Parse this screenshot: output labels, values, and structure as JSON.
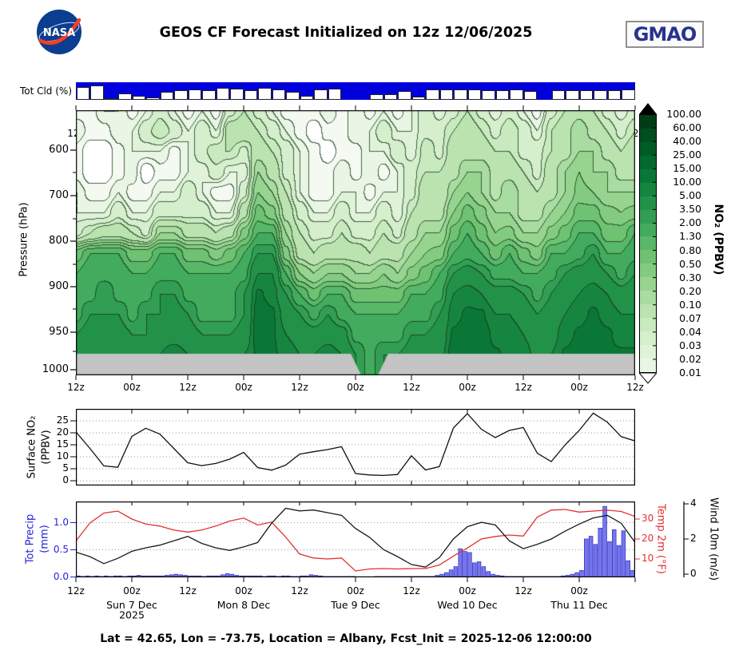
{
  "header": {
    "title": "GEOS CF Forecast Initialized on 12z 12/06/2025",
    "nasa_text": "NASA",
    "gmao_text": "GMAO"
  },
  "footer": {
    "text": "Lat = 42.65, Lon = -73.75, Location = Albany, Fcst_Init = 2025-12-06 12:00:00"
  },
  "colors": {
    "cloud_blue": "#0000dd",
    "precip_bar": "#7575ee",
    "precip_edge": "#2222bb",
    "temp_red": "#e33030",
    "wind_black": "#1a1a1a",
    "terrain_gray": "#c4c4c4",
    "grid_dot": "#999999",
    "frame": "#000000",
    "nasa_blue": "#0b3d91",
    "nasa_red": "#fc3d21"
  },
  "labels": {
    "cloud": "Tot Cld (%)",
    "pressure": "Pressure (hPa)",
    "colorbar_title": "NO₂ (PPBV)",
    "surface_line1": "Surface NO₂",
    "surface_line2": "(PPBV)",
    "precip_line1": "Tot Precip",
    "precip_line2": "(mm)",
    "temp": "Temp 2m (°F)",
    "wind": "Wind 10m (m/s)"
  },
  "time_axis": {
    "tick_labels_11": [
      "12z",
      "00z",
      "12z",
      "00z",
      "12z",
      "00z",
      "12z",
      "00z",
      "12z",
      "00z",
      "12z"
    ],
    "tick_labels_10": [
      "12z",
      "00z",
      "12z",
      "00z",
      "12z",
      "00z",
      "12z",
      "00z",
      "12z",
      "00z"
    ],
    "day_labels": [
      "Sun 7 Dec",
      "Mon 8 Dec",
      "Tue 9 Dec",
      "Wed 10 Dec",
      "Thu 11 Dec"
    ],
    "year": "2025"
  },
  "axes": {
    "pressure_ticks": [
      "600",
      "700",
      "800",
      "900",
      "950",
      "1000"
    ],
    "surface_ticks": [
      "0",
      "5",
      "10",
      "15",
      "20",
      "25"
    ],
    "precip_ticks": [
      "0.0",
      "0.5",
      "1.0"
    ],
    "temp_ticks": [
      "10",
      "20",
      "30"
    ],
    "wind_ticks": [
      "0",
      "2",
      "4"
    ],
    "colorbar_labels": [
      "100.00",
      "60.00",
      "40.00",
      "25.00",
      "15.00",
      "10.00",
      "5.00",
      "3.50",
      "2.00",
      "1.30",
      "0.80",
      "0.50",
      "0.30",
      "0.20",
      "0.10",
      "0.07",
      "0.04",
      "0.03",
      "0.02",
      "0.01"
    ]
  },
  "chart_data": [
    {
      "type": "bar",
      "name": "total_cloud_percent",
      "title": "Tot Cld (%)",
      "x_start_hour": 0,
      "x_step_hours": 3,
      "values": [
        25,
        20,
        90,
        65,
        75,
        85,
        55,
        45,
        40,
        45,
        30,
        35,
        45,
        30,
        40,
        55,
        75,
        40,
        35,
        100,
        100,
        70,
        70,
        50,
        80,
        40,
        40,
        40,
        40,
        45,
        45,
        40,
        50,
        100,
        45,
        45,
        45,
        45,
        45,
        40
      ]
    },
    {
      "type": "heatmap",
      "name": "no2_pressure_time",
      "xlabel_ticks": "hours from 12z 2025-12-06, 3-hourly",
      "ylabel": "Pressure (hPa)",
      "colorbar_label": "NO₂ (PPBV)",
      "level_values": [
        0.01,
        0.02,
        0.03,
        0.04,
        0.07,
        0.1,
        0.2,
        0.3,
        0.5,
        0.8,
        1.3,
        2.0,
        3.5,
        5.0,
        10.0,
        15.0,
        25.0,
        40.0,
        60.0,
        100.0
      ],
      "palette": [
        "#ffffff",
        "#f4faf1",
        "#eaf6e5",
        "#e0f3d9",
        "#d5eecc",
        "#c9e9bf",
        "#bae3b0",
        "#a9dca0",
        "#97d490",
        "#83cb80",
        "#6ec272",
        "#58b768",
        "#42ab5d",
        "#319e53",
        "#239249",
        "#168540",
        "#0b7737",
        "#04692e",
        "#005b26",
        "#004d1f",
        "#003d17"
      ],
      "row_pressures_hpa": [
        510,
        555,
        600,
        647,
        692,
        736,
        781,
        826,
        870,
        908,
        930,
        953,
        980,
        1000
      ],
      "values_ppbv": [
        [
          0.016,
          0.03,
          0.016,
          0.016,
          0.03,
          0.03,
          0.06,
          1,
          2,
          3,
          3,
          5,
          8,
          10
        ],
        [
          0.016,
          0.016,
          0.005,
          0.005,
          0.016,
          0.03,
          0.1,
          2,
          3,
          3,
          5,
          6.5,
          10,
          13
        ],
        [
          0.03,
          0.016,
          0.005,
          0.005,
          0.016,
          0.03,
          0.16,
          2,
          3,
          5,
          5,
          8,
          10,
          13
        ],
        [
          0.03,
          0.03,
          0.016,
          0.016,
          0.03,
          0.06,
          0.16,
          2,
          3,
          3,
          5,
          6.5,
          8,
          10
        ],
        [
          0.016,
          0.03,
          0.03,
          0.03,
          0.016,
          0.03,
          0.1,
          1,
          2,
          3,
          3,
          5,
          8,
          10
        ],
        [
          0.03,
          0.06,
          0.03,
          0.005,
          0.016,
          0.03,
          0.06,
          1,
          2,
          3,
          5,
          5,
          8,
          10
        ],
        [
          0.06,
          0.1,
          0.03,
          0.016,
          0.03,
          0.06,
          0.3,
          2,
          3,
          5,
          5,
          8,
          10,
          13
        ],
        [
          0.03,
          0.06,
          0.016,
          0.016,
          0.03,
          0.06,
          0.3,
          2,
          3,
          5,
          6.5,
          8,
          13,
          13
        ],
        [
          0.016,
          0.03,
          0.03,
          0.03,
          0.06,
          0.06,
          0.16,
          1,
          2,
          3,
          5,
          6.5,
          10,
          10
        ],
        [
          0.03,
          0.06,
          0.06,
          0.03,
          0.03,
          0.06,
          0.16,
          1,
          2,
          3,
          3,
          5,
          8,
          10
        ],
        [
          0.016,
          0.03,
          0.1,
          0.06,
          0.016,
          0.03,
          0.1,
          0.6,
          2,
          3,
          3,
          5,
          6.5,
          8
        ],
        [
          0.06,
          0.16,
          0.1,
          0.03,
          0.016,
          0.03,
          0.16,
          1,
          2,
          3,
          3,
          5,
          6.5,
          8
        ],
        [
          0.1,
          0.16,
          0.06,
          0.03,
          0.06,
          0.16,
          0.6,
          2,
          3,
          5,
          5,
          6.5,
          10,
          13
        ],
        [
          0.06,
          0.1,
          0.16,
          0.3,
          0.5,
          1,
          2,
          5,
          10,
          16,
          20,
          20,
          16,
          16
        ],
        [
          0.03,
          0.06,
          0.1,
          0.16,
          0.3,
          0.6,
          2,
          5,
          10,
          13,
          16,
          16,
          16,
          16
        ],
        [
          0.016,
          0.03,
          0.06,
          0.06,
          0.1,
          0.16,
          0.3,
          0.6,
          2,
          5,
          8,
          10,
          13,
          13
        ],
        [
          0.016,
          0.016,
          0.03,
          0.03,
          0.03,
          0.06,
          0.1,
          0.16,
          0.5,
          2,
          5,
          8,
          10,
          10
        ],
        [
          0.016,
          0.005,
          0.016,
          0.016,
          0.016,
          0.03,
          0.06,
          0.1,
          0.3,
          1,
          3,
          6.5,
          10,
          10
        ],
        [
          0.03,
          0.016,
          0.005,
          0.016,
          0.016,
          0.03,
          0.06,
          0.16,
          0.5,
          2,
          5,
          8,
          13,
          13
        ],
        [
          0.016,
          0.016,
          0.016,
          0.03,
          0.03,
          0.06,
          0.1,
          0.16,
          0.5,
          2,
          3,
          6.5,
          10,
          13
        ],
        [
          0.03,
          0.03,
          0.016,
          0.016,
          0.03,
          0.03,
          0.06,
          0.16,
          0.3,
          1,
          2,
          3,
          5,
          5
        ],
        [
          0.016,
          0.03,
          0.03,
          0.03,
          0.016,
          0.03,
          0.06,
          0.1,
          0.3,
          1,
          2,
          3,
          3,
          3
        ],
        [
          0.03,
          0.06,
          0.03,
          0.016,
          0.03,
          0.06,
          0.1,
          0.16,
          0.5,
          1,
          2,
          3,
          5,
          5
        ],
        [
          0.016,
          0.03,
          0.06,
          0.03,
          0.03,
          0.03,
          0.06,
          0.16,
          0.3,
          1,
          2,
          3,
          5,
          6.5
        ],
        [
          0.03,
          0.03,
          0.03,
          0.06,
          0.06,
          0.1,
          0.16,
          0.3,
          0.6,
          2,
          3,
          5,
          6.5,
          8
        ],
        [
          0.06,
          0.06,
          0.1,
          0.1,
          0.16,
          0.16,
          0.3,
          0.5,
          1,
          2,
          3,
          5,
          6.5,
          6.5
        ],
        [
          0.03,
          0.06,
          0.06,
          0.1,
          0.1,
          0.16,
          0.3,
          0.6,
          2,
          3,
          5,
          6.5,
          8,
          10
        ],
        [
          0.06,
          0.1,
          0.16,
          0.16,
          0.3,
          0.5,
          1,
          2,
          5,
          10,
          13,
          16,
          20,
          20
        ],
        [
          0.1,
          0.16,
          0.16,
          0.3,
          0.5,
          1,
          2,
          3,
          6.5,
          13,
          16,
          20,
          25,
          25
        ],
        [
          0.06,
          0.1,
          0.16,
          0.3,
          0.3,
          0.6,
          1,
          2,
          5,
          10,
          16,
          20,
          20,
          20
        ],
        [
          0.03,
          0.06,
          0.1,
          0.16,
          0.16,
          0.3,
          0.5,
          1,
          3,
          6.5,
          10,
          13,
          16,
          16
        ],
        [
          0.06,
          0.1,
          0.1,
          0.16,
          0.3,
          0.3,
          0.6,
          2,
          3,
          6.5,
          10,
          13,
          13,
          13
        ],
        [
          0.03,
          0.06,
          0.06,
          0.1,
          0.16,
          0.16,
          0.3,
          1,
          2,
          5,
          8,
          10,
          13,
          13
        ],
        [
          0.016,
          0.03,
          0.06,
          0.06,
          0.1,
          0.16,
          0.3,
          0.6,
          2,
          3,
          5,
          6.5,
          8,
          8
        ],
        [
          0.06,
          0.1,
          0.1,
          0.16,
          0.16,
          0.3,
          0.6,
          2,
          3,
          5,
          6.5,
          8,
          10,
          10
        ],
        [
          0.1,
          0.16,
          0.16,
          0.3,
          0.3,
          0.5,
          1,
          2,
          5,
          8,
          10,
          13,
          16,
          16
        ],
        [
          0.16,
          0.3,
          0.3,
          0.5,
          0.6,
          1,
          2,
          3,
          6.5,
          10,
          13,
          16,
          20,
          20
        ],
        [
          0.1,
          0.16,
          0.3,
          0.3,
          0.5,
          1,
          2,
          5,
          8,
          13,
          16,
          20,
          20,
          20
        ],
        [
          0.06,
          0.1,
          0.16,
          0.3,
          0.3,
          0.6,
          1,
          2,
          5,
          10,
          13,
          16,
          16,
          16
        ],
        [
          0.03,
          0.06,
          0.1,
          0.16,
          0.3,
          0.5,
          1,
          2,
          3,
          6.5,
          10,
          13,
          16,
          16
        ],
        [
          0.06,
          0.1,
          0.16,
          0.16,
          0.3,
          0.6,
          2,
          3,
          5,
          8,
          10,
          13,
          16,
          16
        ]
      ],
      "terrain_gap_hours": [
        59,
        67
      ]
    },
    {
      "type": "line",
      "name": "surface_no2_ppbv",
      "ylabel": "Surface NO₂ (PPBV)",
      "ylim": [
        0,
        30
      ],
      "yticks": [
        0,
        5,
        10,
        15,
        20,
        25
      ],
      "x_start_hour": 0,
      "x_step_hours": 3,
      "values": [
        20.4,
        13.5,
        6.2,
        5.6,
        18.5,
        21.9,
        19.5,
        13.5,
        7.5,
        6.3,
        7.2,
        9.0,
        11.8,
        5.5,
        4.4,
        6.5,
        11.1,
        12.1,
        13.0,
        14.2,
        3.0,
        2.4,
        2.2,
        2.6,
        10.4,
        4.5,
        5.9,
        22.0,
        28.0,
        21.5,
        18.0,
        21.0,
        22.2,
        11.5,
        8.0,
        15.0,
        21.0,
        28.2,
        24.5,
        18.4,
        16.6
      ]
    },
    {
      "type": "combo",
      "name": "precip_temp_wind",
      "series": [
        {
          "name": "tot_precip_mm",
          "type": "bar",
          "x_step_hours": 1,
          "ylim": [
            0,
            1.4
          ],
          "yticks": [
            0.0,
            0.5,
            1.0
          ],
          "values": [
            0.02,
            0.01,
            0.02,
            0.01,
            0.02,
            0.01,
            0.02,
            0.01,
            0.02,
            0.02,
            0.01,
            0.02,
            0.02,
            0.03,
            0.02,
            0.02,
            0.02,
            0.02,
            0.02,
            0.03,
            0.04,
            0.05,
            0.04,
            0.03,
            0.02,
            0.02,
            0.02,
            0.01,
            0.02,
            0.02,
            0.02,
            0.04,
            0.06,
            0.05,
            0.03,
            0.02,
            0.02,
            0.02,
            0.02,
            0.02,
            0.01,
            0.02,
            0.02,
            0.01,
            0.02,
            0.02,
            0.01,
            0.01,
            0.02,
            0.02,
            0.04,
            0.03,
            0.02,
            0.01,
            0.01,
            0.01,
            0.01,
            0.01,
            0.01,
            0.01,
            0,
            0,
            0,
            0,
            0.01,
            0.01,
            0.01,
            0.01,
            0.01,
            0.01,
            0.01,
            0.01,
            0.01,
            0.01,
            0.01,
            0.01,
            0.01,
            0.03,
            0.05,
            0.08,
            0.13,
            0.19,
            0.52,
            0.47,
            0.45,
            0.26,
            0.28,
            0.19,
            0.1,
            0.05,
            0.03,
            0.02,
            0.01,
            0.01,
            0.01,
            0.01,
            0.01,
            0.01,
            0.01,
            0.01,
            0.01,
            0.01,
            0.01,
            0.01,
            0.02,
            0.03,
            0.05,
            0.08,
            0.12,
            0.7,
            0.75,
            0.6,
            0.9,
            1.3,
            0.65,
            0.87,
            0.58,
            0.85,
            0.3,
            0.12
          ]
        },
        {
          "name": "temp_2m_f",
          "type": "line",
          "x_step_hours": 3,
          "ylim": [
            0,
            38
          ],
          "yticks": [
            10,
            20,
            30
          ],
          "values": [
            19,
            28,
            33,
            34,
            30,
            27.5,
            26.5,
            24.5,
            23.5,
            24.5,
            26.5,
            29,
            30.5,
            27,
            28.5,
            21,
            12.5,
            10.5,
            10,
            10.5,
            4,
            5,
            5.2,
            5,
            5.2,
            5.2,
            7,
            11.5,
            15.5,
            20,
            21.3,
            22,
            21.5,
            31,
            34.5,
            34.8,
            33.5,
            34,
            34.5,
            33.8,
            31.3
          ]
        },
        {
          "name": "wind_10m_ms",
          "type": "line",
          "x_step_hours": 3,
          "ylim": [
            0,
            4.2
          ],
          "yticks": [
            0,
            2,
            4
          ],
          "values": [
            1.25,
            1.0,
            0.6,
            0.9,
            1.3,
            1.5,
            1.65,
            1.9,
            2.15,
            1.75,
            1.5,
            1.35,
            1.55,
            1.8,
            2.9,
            3.75,
            3.6,
            3.65,
            3.5,
            3.35,
            2.6,
            2.1,
            1.4,
            1.0,
            0.55,
            0.4,
            0.95,
            2.0,
            2.7,
            2.95,
            2.8,
            1.9,
            1.45,
            1.7,
            2.0,
            2.45,
            2.85,
            3.2,
            3.35,
            2.9,
            1.8
          ]
        }
      ]
    }
  ]
}
